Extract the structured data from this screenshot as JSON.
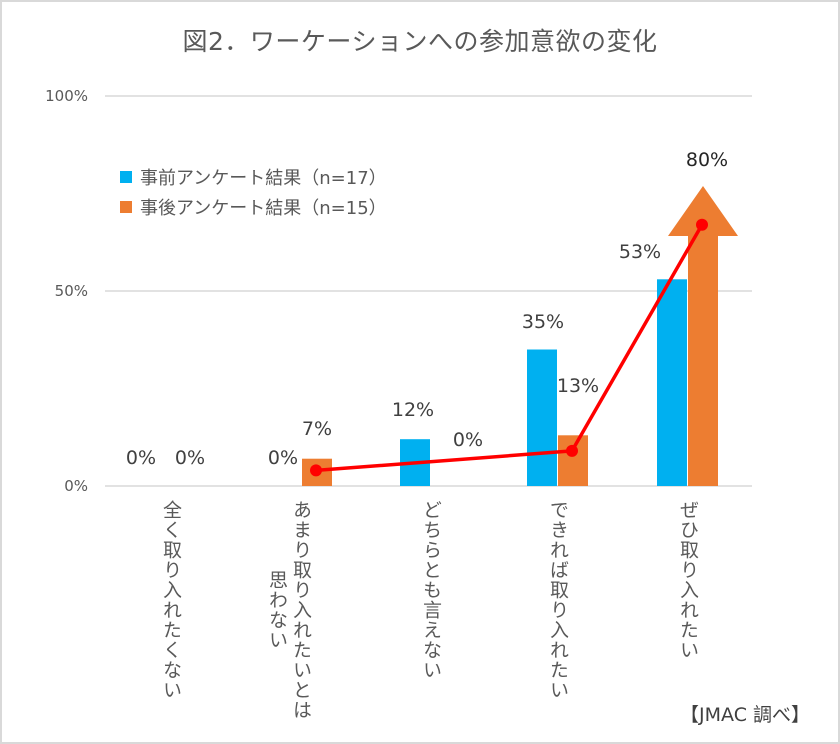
{
  "chart_data": {
    "type": "bar",
    "title": "図2．ワーケーションへの参加意欲の変化",
    "categories": [
      [
        "全く取り入れたくない"
      ],
      [
        "あまり取り入れたいとは",
        "思わない"
      ],
      [
        "どちらとも言えない"
      ],
      [
        "できれば取り入れたい"
      ],
      [
        "ぜひ取り入れたい"
      ]
    ],
    "series": [
      {
        "name": "事前アンケート結果（n=17）",
        "color": "#00b0f0",
        "values": [
          0,
          0,
          12,
          35,
          53
        ],
        "labels": [
          "0%",
          "0%",
          "12%",
          "35%",
          "53%"
        ]
      },
      {
        "name": "事後アンケート結果（n=15）",
        "color": "#ed7d31",
        "values": [
          0,
          7,
          0,
          13,
          80
        ],
        "labels": [
          "0%",
          "7%",
          "0%",
          "13%",
          "80%"
        ]
      }
    ],
    "overlay_line": {
      "color": "#ff0000",
      "points": [
        {
          "category_index": 1,
          "value": 4
        },
        {
          "category_index": 3,
          "value": 9
        },
        {
          "category_index": 4,
          "value": 67
        }
      ]
    },
    "highlight": {
      "series_index": 1,
      "category_index": 4,
      "shape": "up-arrow"
    },
    "yticks": [
      "0%",
      "50%",
      "100%"
    ],
    "ytick_values": [
      0,
      50,
      100
    ],
    "ylim": [
      0,
      100
    ],
    "xlabel": "",
    "ylabel": "",
    "grid": true,
    "legend": "upper-left",
    "source": "【JMAC 調べ】"
  }
}
